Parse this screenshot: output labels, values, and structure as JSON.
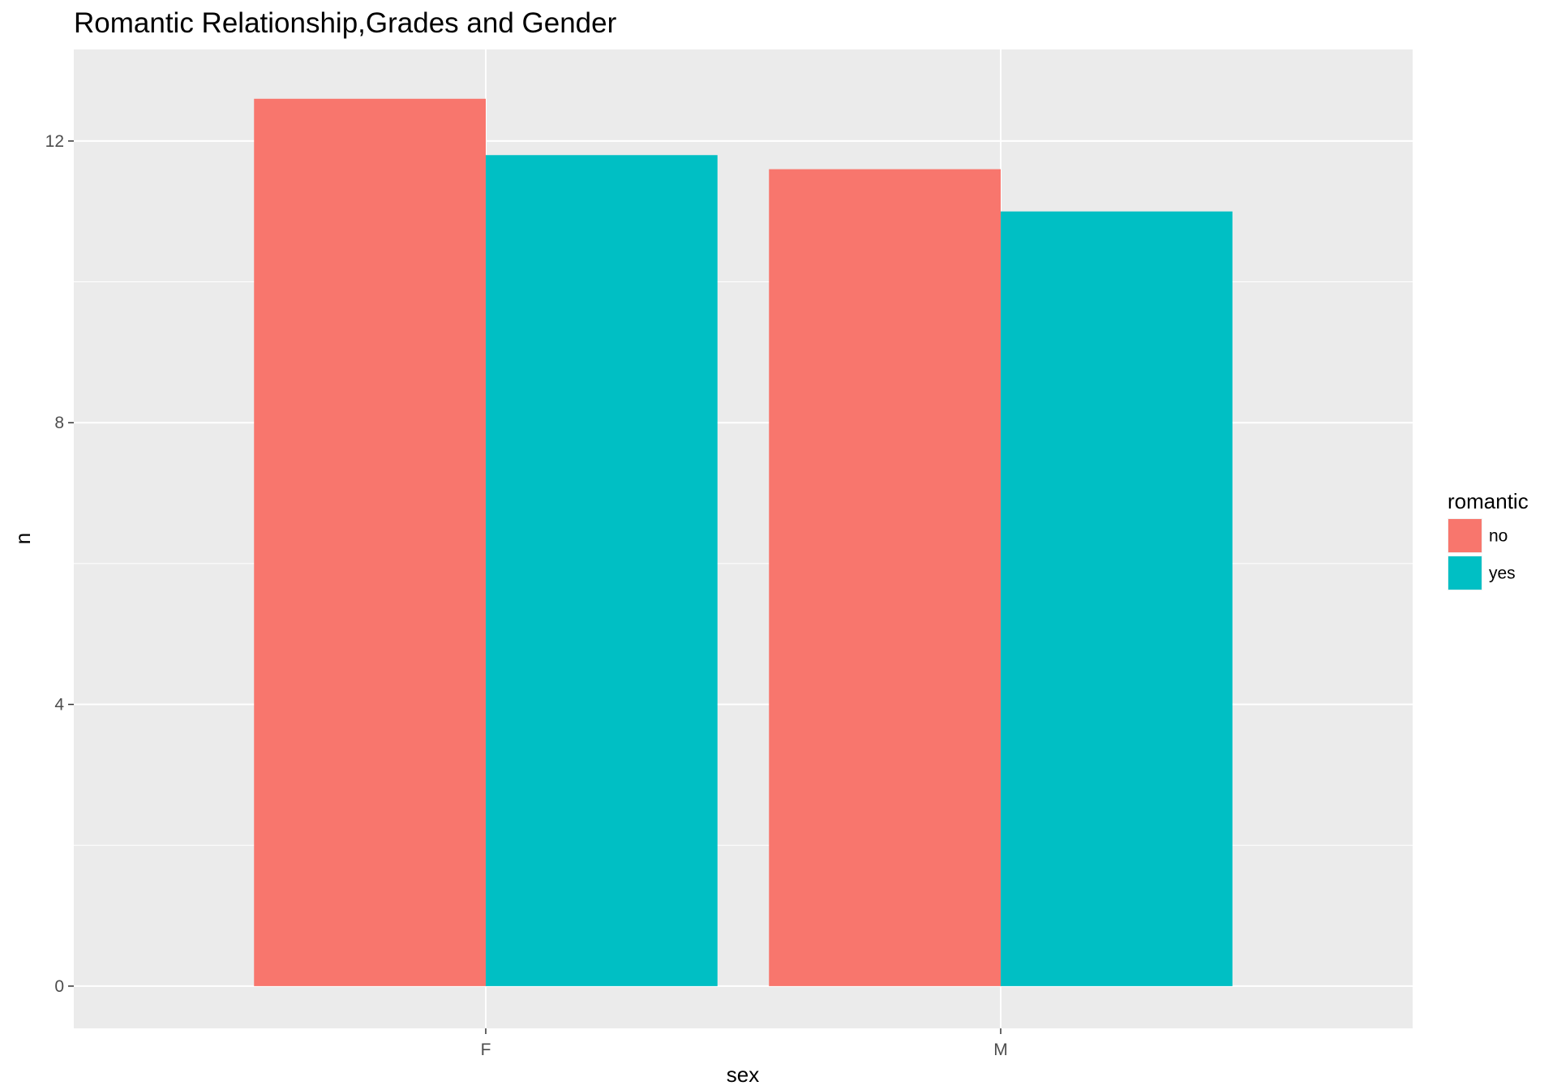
{
  "chart_data": {
    "type": "bar",
    "title": "Romantic Relationship,Grades and Gender",
    "xlabel": "sex",
    "ylabel": "n",
    "categories": [
      "F",
      "M"
    ],
    "series": [
      {
        "name": "no",
        "color": "#F8766D",
        "values": [
          12.6,
          11.6
        ]
      },
      {
        "name": "yes",
        "color": "#00BFC4",
        "values": [
          11.8,
          11.0
        ]
      }
    ],
    "ylim": [
      -0.6,
      13.3
    ],
    "yticks": [
      0,
      4,
      8,
      12
    ],
    "ytick_labels": [
      "0",
      "4",
      "8",
      "12"
    ],
    "grid": true,
    "legend": {
      "title": "romantic",
      "position": "right"
    }
  },
  "colors": {
    "panel_background": "#EBEBEB",
    "gridline": "#FFFFFF",
    "tick_text": "#4D4D4D",
    "tick_mark": "#333333"
  }
}
